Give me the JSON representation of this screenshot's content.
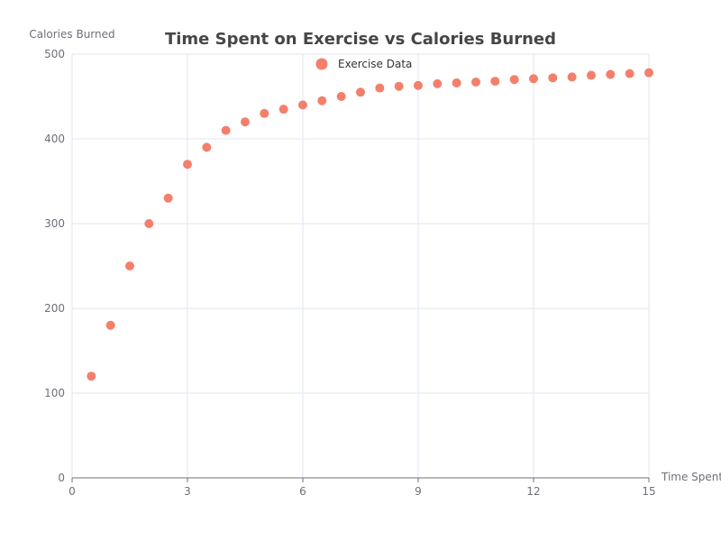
{
  "chart_data": {
    "type": "scatter",
    "title": "Time Spent on Exercise vs Calories Burned",
    "xlabel": "Time Spent",
    "ylabel": "Calories Burned",
    "xlim": [
      0,
      15
    ],
    "ylim": [
      0,
      500
    ],
    "x_ticks": [
      0,
      3,
      6,
      9,
      12,
      15
    ],
    "y_ticks": [
      0,
      100,
      200,
      300,
      400,
      500
    ],
    "grid": true,
    "legend_position": "top-center",
    "colors": {
      "series": "#f47f6b"
    },
    "series": [
      {
        "name": "Exercise Data",
        "points": [
          [
            0.5,
            120
          ],
          [
            1.0,
            180
          ],
          [
            1.5,
            250
          ],
          [
            2.0,
            300
          ],
          [
            2.5,
            330
          ],
          [
            3.0,
            370
          ],
          [
            3.5,
            390
          ],
          [
            4.0,
            410
          ],
          [
            4.5,
            420
          ],
          [
            5.0,
            430
          ],
          [
            5.5,
            435
          ],
          [
            6.0,
            440
          ],
          [
            6.5,
            445
          ],
          [
            7.0,
            450
          ],
          [
            7.5,
            455
          ],
          [
            8.0,
            460
          ],
          [
            8.5,
            462
          ],
          [
            9.0,
            463
          ],
          [
            9.5,
            465
          ],
          [
            10.0,
            466
          ],
          [
            10.5,
            467
          ],
          [
            11.0,
            468
          ],
          [
            11.5,
            470
          ],
          [
            12.0,
            471
          ],
          [
            12.5,
            472
          ],
          [
            13.0,
            473
          ],
          [
            13.5,
            475
          ],
          [
            14.0,
            476
          ],
          [
            14.5,
            477
          ],
          [
            15.0,
            478
          ]
        ]
      }
    ]
  }
}
